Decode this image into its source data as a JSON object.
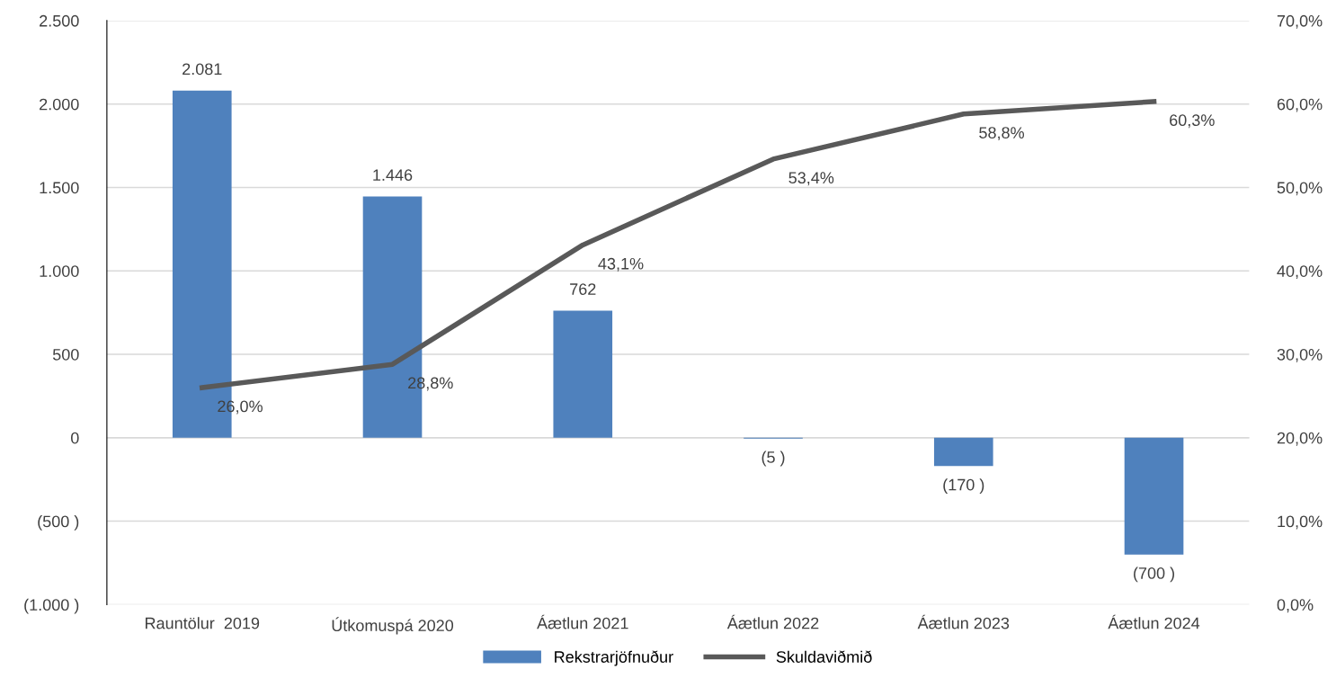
{
  "chart_data": {
    "type": "bar",
    "categories": [
      "Rauntölur  2019",
      "Útkomuspá 2020",
      "Áætlun 2021",
      "Áætlun 2022",
      "Áætlun 2023",
      "Áætlun 2024"
    ],
    "series": [
      {
        "name": "Rekstrarjöfnuður",
        "color": "#4f81bd",
        "values": [
          2081,
          1446,
          762,
          -5,
          -170,
          -700
        ],
        "value_labels": [
          "2.081",
          "1.446",
          "762",
          "(5 )",
          "(170 )",
          "(700 )"
        ]
      },
      {
        "name": "Skuldaviðmið",
        "type": "line",
        "axis": "y2",
        "color": "#595959",
        "values": [
          26.0,
          28.8,
          43.1,
          53.4,
          58.8,
          60.3
        ],
        "value_labels": [
          "26,0%",
          "28,8%",
          "43,1%",
          "53,4%",
          "58,8%",
          "60,3%"
        ]
      }
    ],
    "ylim": [
      -1000,
      2500
    ],
    "yticks": [
      {
        "value": -1000,
        "label": "(1.000 )"
      },
      {
        "value": -500,
        "label": "(500 )"
      },
      0,
      {
        "value": 500,
        "label": "500"
      },
      {
        "value": 1000,
        "label": "1.000"
      },
      {
        "value": 1500,
        "label": "1.500"
      },
      {
        "value": 2000,
        "label": "2.000"
      },
      {
        "value": 2500,
        "label": "2.500"
      }
    ],
    "y2lim": [
      0,
      70
    ],
    "y2ticks": [
      {
        "value": 0,
        "label": "0,0%"
      },
      {
        "value": 10,
        "label": "10,0%"
      },
      {
        "value": 20,
        "label": "20,0%"
      },
      {
        "value": 30,
        "label": "30,0%"
      },
      {
        "value": 40,
        "label": "40,0%"
      },
      {
        "value": 50,
        "label": "50,0%"
      },
      {
        "value": 60,
        "label": "60,0%"
      },
      {
        "value": 70,
        "label": "70,0%"
      }
    ],
    "grid": "y",
    "legend": "bottom",
    "marker": "none",
    "line_style": "solid"
  }
}
